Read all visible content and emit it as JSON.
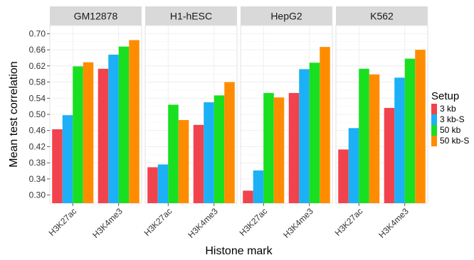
{
  "chart_data": {
    "type": "bar",
    "facets": [
      "GM12878",
      "H1-hESC",
      "HepG2",
      "K562"
    ],
    "categories": [
      "H3K27ac",
      "H3K4me3"
    ],
    "xlabel": "Histone mark",
    "ylabel": "Mean test correlation",
    "ylim": [
      0.28,
      0.72
    ],
    "yticks": [
      "0.30",
      "0.34",
      "0.38",
      "0.42",
      "0.46",
      "0.50",
      "0.54",
      "0.58",
      "0.62",
      "0.66",
      "0.70"
    ],
    "grid": true,
    "legend": {
      "title": "Setup",
      "placement": "right"
    },
    "series": [
      {
        "name": "3 kb",
        "color": "#F0434E",
        "values": {
          "GM12878": [
            0.463,
            0.613
          ],
          "H1-hESC": [
            0.369,
            0.474
          ],
          "HepG2": [
            0.311,
            0.553
          ],
          "K562": [
            0.413,
            0.516
          ]
        }
      },
      {
        "name": "3 kb-S",
        "color": "#1CB0F6",
        "values": {
          "GM12878": [
            0.498,
            0.648
          ],
          "H1-hESC": [
            0.376,
            0.53
          ],
          "HepG2": [
            0.361,
            0.612
          ],
          "K562": [
            0.466,
            0.591
          ]
        }
      },
      {
        "name": "50 kb",
        "color": "#18E020",
        "values": {
          "GM12878": [
            0.619,
            0.668
          ],
          "H1-hESC": [
            0.524,
            0.547
          ],
          "HepG2": [
            0.553,
            0.628
          ],
          "K562": [
            0.613,
            0.638
          ]
        }
      },
      {
        "name": "50 kb-S",
        "color": "#FF8C00",
        "values": {
          "GM12878": [
            0.629,
            0.684
          ],
          "H1-hESC": [
            0.486,
            0.58
          ],
          "HepG2": [
            0.542,
            0.667
          ],
          "K562": [
            0.599,
            0.66
          ]
        }
      }
    ]
  }
}
